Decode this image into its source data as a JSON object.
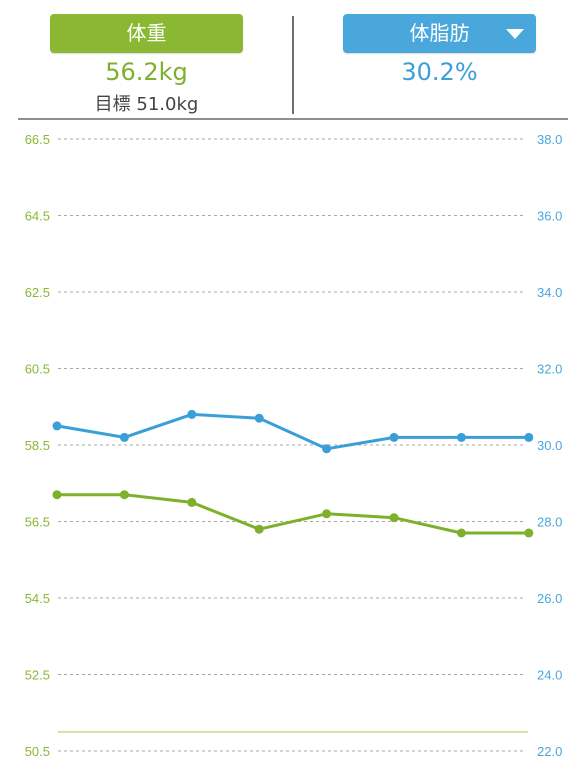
{
  "header": {
    "weight_button": "体重",
    "weight_value": "56.2kg",
    "goal_text": "目標 51.0kg",
    "fat_button": "体脂肪",
    "fat_value": "30.2%"
  },
  "colors": {
    "weight": "#8ab832",
    "fat": "#4aa7dc"
  },
  "chart_data": {
    "type": "line",
    "grid": true,
    "left_axis": {
      "ticks": [
        "66.5",
        "64.5",
        "62.5",
        "60.5",
        "58.5",
        "56.5",
        "54.5",
        "52.5",
        "50.5"
      ],
      "range": [
        50.5,
        66.5
      ],
      "color": "#8ab832"
    },
    "right_axis": {
      "ticks": [
        "38.0",
        "36.0",
        "34.0",
        "32.0",
        "30.0",
        "28.0",
        "26.0",
        "24.0",
        "22.0"
      ],
      "range": [
        22.0,
        38.0
      ],
      "color": "#4aa7dc"
    },
    "series": [
      {
        "axis": "right",
        "color": "#3a9fd8",
        "values": [
          30.5,
          30.2,
          30.8,
          30.7,
          29.9,
          30.2,
          30.2,
          30.2
        ]
      },
      {
        "axis": "left",
        "color": "#7fb02b",
        "values": [
          57.2,
          57.2,
          57.0,
          56.3,
          56.7,
          56.6,
          56.2,
          56.2
        ]
      }
    ],
    "goal_line": {
      "axis": "left",
      "value": 51.0
    }
  }
}
